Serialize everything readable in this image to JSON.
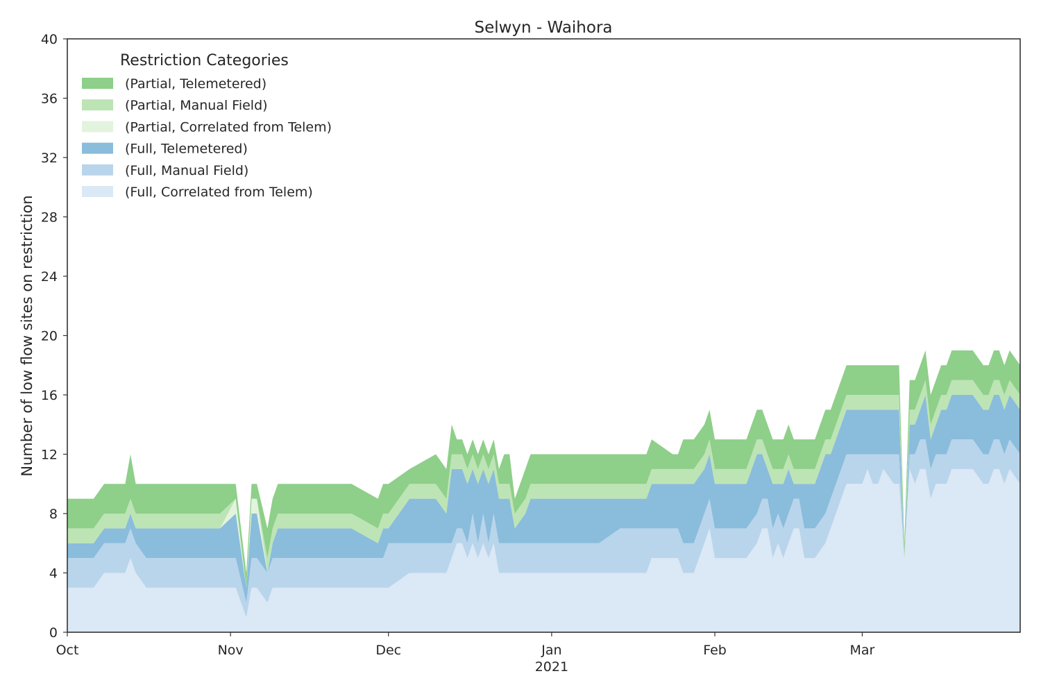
{
  "chart_data": {
    "type": "area",
    "stacked": true,
    "title": "Selwyn - Waihora",
    "xlabel": "",
    "ylabel": "Number of low flow sites on restriction",
    "ylim": [
      0,
      40
    ],
    "yticks": [
      0,
      4,
      8,
      12,
      16,
      20,
      24,
      28,
      32,
      36,
      40
    ],
    "xlim": [
      "2020-10-01",
      "2021-03-31"
    ],
    "xticks": [
      {
        "date": "2020-10-01",
        "label": "Oct",
        "sublabel": ""
      },
      {
        "date": "2020-11-01",
        "label": "Nov",
        "sublabel": ""
      },
      {
        "date": "2020-12-01",
        "label": "Dec",
        "sublabel": ""
      },
      {
        "date": "2021-01-01",
        "label": "Jan",
        "sublabel": "2021"
      },
      {
        "date": "2021-02-01",
        "label": "Feb",
        "sublabel": ""
      },
      {
        "date": "2021-03-01",
        "label": "Mar",
        "sublabel": ""
      }
    ],
    "grid": false,
    "legend": {
      "title": "Restriction Categories",
      "placement": "upper-left"
    },
    "x": [
      "2020-10-01",
      "2020-10-06",
      "2020-10-08",
      "2020-10-12",
      "2020-10-13",
      "2020-10-14",
      "2020-10-16",
      "2020-10-18",
      "2020-10-25",
      "2020-10-30",
      "2020-11-02",
      "2020-11-04",
      "2020-11-05",
      "2020-11-06",
      "2020-11-08",
      "2020-11-09",
      "2020-11-10",
      "2020-11-12",
      "2020-11-14",
      "2020-11-18",
      "2020-11-23",
      "2020-11-24",
      "2020-11-29",
      "2020-11-30",
      "2020-12-01",
      "2020-12-05",
      "2020-12-10",
      "2020-12-12",
      "2020-12-13",
      "2020-12-14",
      "2020-12-15",
      "2020-12-16",
      "2020-12-17",
      "2020-12-18",
      "2020-12-19",
      "2020-12-20",
      "2020-12-21",
      "2020-12-22",
      "2020-12-23",
      "2020-12-24",
      "2020-12-25",
      "2020-12-27",
      "2020-12-28",
      "2020-12-29",
      "2020-12-31",
      "2021-01-01",
      "2021-01-05",
      "2021-01-10",
      "2021-01-14",
      "2021-01-18",
      "2021-01-19",
      "2021-01-20",
      "2021-01-24",
      "2021-01-25",
      "2021-01-26",
      "2021-01-28",
      "2021-01-30",
      "2021-01-31",
      "2021-02-01",
      "2021-02-03",
      "2021-02-06",
      "2021-02-07",
      "2021-02-09",
      "2021-02-10",
      "2021-02-11",
      "2021-02-12",
      "2021-02-13",
      "2021-02-14",
      "2021-02-15",
      "2021-02-16",
      "2021-02-17",
      "2021-02-18",
      "2021-02-19",
      "2021-02-20",
      "2021-02-22",
      "2021-02-23",
      "2021-02-26",
      "2021-02-28",
      "2021-03-01",
      "2021-03-02",
      "2021-03-03",
      "2021-03-04",
      "2021-03-05",
      "2021-03-07",
      "2021-03-08",
      "2021-03-09",
      "2021-03-10",
      "2021-03-11",
      "2021-03-12",
      "2021-03-13",
      "2021-03-14",
      "2021-03-15",
      "2021-03-16",
      "2021-03-17",
      "2021-03-18",
      "2021-03-20",
      "2021-03-22",
      "2021-03-24",
      "2021-03-25",
      "2021-03-26",
      "2021-03-27",
      "2021-03-28",
      "2021-03-29",
      "2021-03-31"
    ],
    "series": [
      {
        "name": "(Full, Correlated from Telem)",
        "color": "#dbe8f5",
        "values": [
          3,
          3,
          4,
          4,
          5,
          4,
          3,
          3,
          3,
          3,
          3,
          1,
          3,
          3,
          2,
          3,
          3,
          3,
          3,
          3,
          3,
          3,
          3,
          3,
          3,
          4,
          4,
          4,
          5,
          6,
          6,
          5,
          6,
          5,
          6,
          5,
          6,
          4,
          4,
          4,
          4,
          4,
          4,
          4,
          4,
          4,
          4,
          4,
          4,
          4,
          4,
          5,
          5,
          5,
          4,
          4,
          6,
          7,
          5,
          5,
          5,
          5,
          6,
          7,
          7,
          5,
          6,
          5,
          6,
          7,
          7,
          5,
          5,
          5,
          6,
          7,
          10,
          10,
          10,
          11,
          10,
          10,
          11,
          10,
          10,
          5,
          11,
          10,
          11,
          11,
          9,
          10,
          10,
          10,
          11,
          11,
          11,
          10,
          10,
          11,
          11,
          10,
          11,
          10
        ]
      },
      {
        "name": "(Full, Manual Field)",
        "color": "#b9d5eb",
        "values": [
          2,
          2,
          2,
          2,
          2,
          2,
          2,
          2,
          2,
          2,
          2,
          1,
          2,
          2,
          2,
          2,
          2,
          2,
          2,
          2,
          2,
          2,
          2,
          2,
          3,
          2,
          2,
          2,
          1,
          1,
          1,
          1,
          2,
          1,
          2,
          1,
          2,
          2,
          2,
          2,
          2,
          2,
          2,
          2,
          2,
          2,
          2,
          2,
          3,
          3,
          3,
          2,
          2,
          2,
          2,
          2,
          2,
          2,
          2,
          2,
          2,
          2,
          2,
          2,
          2,
          2,
          2,
          2,
          2,
          2,
          2,
          2,
          2,
          2,
          2,
          2,
          2,
          2,
          2,
          1,
          2,
          2,
          1,
          2,
          2,
          0,
          1,
          2,
          2,
          2,
          2,
          2,
          2,
          2,
          2,
          2,
          2,
          2,
          2,
          2,
          2,
          2,
          2,
          2
        ]
      },
      {
        "name": "(Full, Telemetered)",
        "color": "#8abcdc",
        "values": [
          1,
          1,
          1,
          1,
          1,
          1,
          2,
          2,
          2,
          2,
          3,
          1,
          3,
          3,
          0,
          1,
          2,
          2,
          2,
          2,
          2,
          2,
          1,
          2,
          1,
          3,
          3,
          2,
          5,
          4,
          4,
          4,
          3,
          4,
          3,
          4,
          3,
          3,
          3,
          3,
          1,
          2,
          3,
          3,
          3,
          3,
          3,
          3,
          2,
          2,
          2,
          3,
          3,
          3,
          4,
          4,
          3,
          3,
          3,
          3,
          3,
          3,
          4,
          3,
          2,
          3,
          2,
          3,
          3,
          1,
          1,
          3,
          3,
          3,
          4,
          3,
          3,
          3,
          3,
          3,
          3,
          3,
          3,
          3,
          3,
          0,
          2,
          2,
          2,
          3,
          2,
          2,
          3,
          3,
          3,
          3,
          3,
          3,
          3,
          3,
          3,
          3,
          3,
          3
        ]
      },
      {
        "name": "(Partial, Correlated from Telem)",
        "color": "#e2f3de",
        "values": [
          0,
          0,
          0,
          0,
          0,
          0,
          0,
          0,
          0,
          0,
          1,
          0,
          1,
          1,
          0,
          0,
          0,
          0,
          0,
          0,
          0,
          0,
          0,
          0,
          0,
          0,
          0,
          0,
          0,
          0,
          0,
          0,
          0,
          0,
          0,
          0,
          0,
          0,
          0,
          0,
          0,
          0,
          0,
          0,
          0,
          0,
          0,
          0,
          0,
          0,
          0,
          0,
          0,
          0,
          0,
          0,
          0,
          0,
          0,
          0,
          0,
          0,
          0,
          0,
          0,
          0,
          0,
          0,
          0,
          0,
          0,
          0,
          0,
          0,
          0,
          0,
          0,
          0,
          0,
          0,
          0,
          0,
          0,
          0,
          0,
          0,
          0,
          0,
          0,
          0,
          0,
          0,
          0,
          0,
          0,
          0,
          0,
          0,
          0,
          0,
          0,
          0,
          0,
          0
        ]
      },
      {
        "name": "(Partial, Manual Field)",
        "color": "#bde4b4",
        "values": [
          1,
          1,
          1,
          1,
          1,
          1,
          1,
          1,
          1,
          1,
          0,
          0,
          0,
          0,
          1,
          1,
          1,
          1,
          1,
          1,
          1,
          1,
          1,
          1,
          1,
          1,
          1,
          1,
          1,
          1,
          1,
          1,
          1,
          1,
          1,
          1,
          1,
          1,
          1,
          1,
          1,
          1,
          1,
          1,
          1,
          1,
          1,
          1,
          1,
          1,
          1,
          1,
          1,
          1,
          1,
          1,
          1,
          1,
          1,
          1,
          1,
          1,
          1,
          1,
          1,
          1,
          1,
          1,
          1,
          1,
          1,
          1,
          1,
          1,
          1,
          1,
          1,
          1,
          1,
          1,
          1,
          1,
          1,
          1,
          1,
          0,
          1,
          1,
          1,
          1,
          1,
          1,
          1,
          1,
          1,
          1,
          1,
          1,
          1,
          1,
          1,
          1,
          1,
          1
        ]
      },
      {
        "name": "(Partial, Telemetered)",
        "color": "#8ecf89",
        "values": [
          2,
          2,
          2,
          2,
          3,
          2,
          2,
          2,
          2,
          2,
          1,
          1,
          1,
          1,
          2,
          2,
          2,
          2,
          2,
          2,
          2,
          2,
          2,
          2,
          2,
          1,
          2,
          2,
          2,
          1,
          1,
          1,
          1,
          1,
          1,
          1,
          1,
          1,
          2,
          2,
          1,
          2,
          2,
          2,
          2,
          2,
          2,
          2,
          2,
          2,
          2,
          2,
          1,
          1,
          2,
          2,
          2,
          2,
          2,
          2,
          2,
          2,
          2,
          2,
          2,
          2,
          2,
          2,
          2,
          2,
          2,
          2,
          2,
          2,
          2,
          2,
          2,
          2,
          2,
          2,
          2,
          2,
          2,
          2,
          2,
          1,
          2,
          2,
          2,
          2,
          2,
          2,
          2,
          2,
          2,
          2,
          2,
          2,
          2,
          2,
          2,
          2,
          2,
          2
        ]
      }
    ]
  }
}
